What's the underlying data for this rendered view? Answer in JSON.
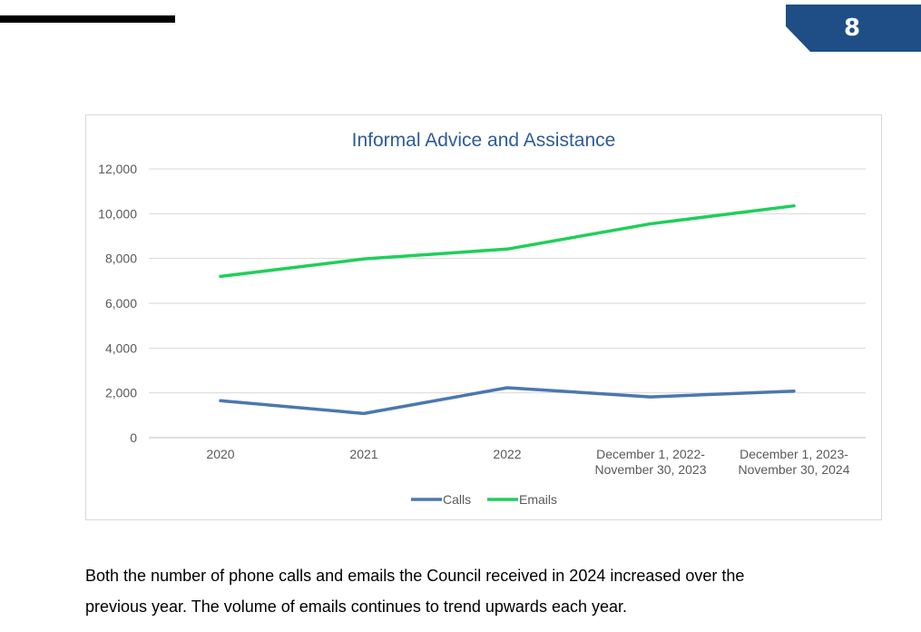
{
  "header": {
    "page_number": "8",
    "accent_color": "#1f4e86"
  },
  "chart_data": {
    "type": "line",
    "title": "Informal Advice and Assistance",
    "title_color": "#2e5c94",
    "categories": [
      [
        "2020"
      ],
      [
        "2021"
      ],
      [
        "2022"
      ],
      [
        "December 1, 2022-",
        "November 30, 2023"
      ],
      [
        "December 1, 2023-",
        "November 30, 2024"
      ]
    ],
    "series": [
      {
        "name": "Calls",
        "color": "#4a78b0",
        "values": [
          1650,
          1080,
          2230,
          1820,
          2080
        ]
      },
      {
        "name": "Emails",
        "color": "#1fcf5a",
        "values": [
          7200,
          7980,
          8420,
          9550,
          10350
        ]
      }
    ],
    "ylim": [
      0,
      12000
    ],
    "yticks": [
      0,
      2000,
      4000,
      6000,
      8000,
      10000,
      12000
    ],
    "ytick_labels": [
      "0",
      "2,000",
      "4,000",
      "6,000",
      "8,000",
      "10,000",
      "12,000"
    ],
    "xlabel": "",
    "ylabel": "",
    "grid": true,
    "legend_position": "bottom"
  },
  "body": {
    "paragraph_line1": "Both the number of phone calls and emails the Council received in 2024 increased over the",
    "paragraph_line2": "previous year. The volume of emails continues to trend upwards each year."
  }
}
